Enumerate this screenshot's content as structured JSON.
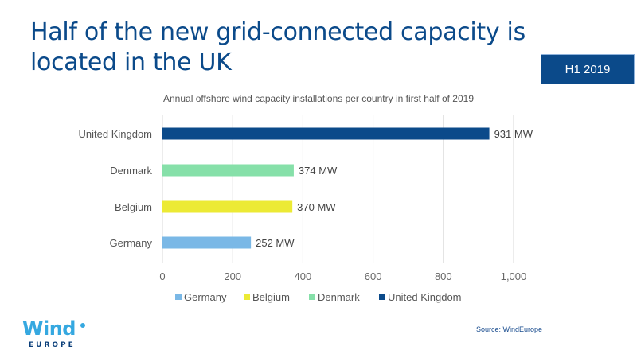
{
  "header": {
    "title": "Half of the new grid-connected capacity is located in the UK",
    "badge": "H1 2019"
  },
  "footer": {
    "source": "Source: WindEurope",
    "logo_wind": "Wind",
    "logo_europe": "EUROPE"
  },
  "chart_data": {
    "type": "bar",
    "orientation": "horizontal",
    "title": "Annual offshore wind capacity installations per country in first half of 2019",
    "categories": [
      "United Kingdom",
      "Denmark",
      "Belgium",
      "Germany"
    ],
    "values": [
      931,
      374,
      370,
      252
    ],
    "data_labels": [
      "931 MW",
      "374 MW",
      "370 MW",
      "252 MW"
    ],
    "colors": [
      "#0b4a8a",
      "#86e0a9",
      "#ecea35",
      "#7ab8e6"
    ],
    "xlim": [
      0,
      1000
    ],
    "xticks": [
      0,
      200,
      400,
      600,
      800,
      1000
    ],
    "xtick_labels": [
      "0",
      "200",
      "400",
      "600",
      "800",
      "1,000"
    ],
    "grid": true,
    "legend": {
      "placement": "bottom",
      "entries": [
        {
          "name": "Germany",
          "color": "#7ab8e6"
        },
        {
          "name": "Belgium",
          "color": "#ecea35"
        },
        {
          "name": "Denmark",
          "color": "#86e0a9"
        },
        {
          "name": "United Kingdom",
          "color": "#0b4a8a"
        }
      ]
    }
  }
}
